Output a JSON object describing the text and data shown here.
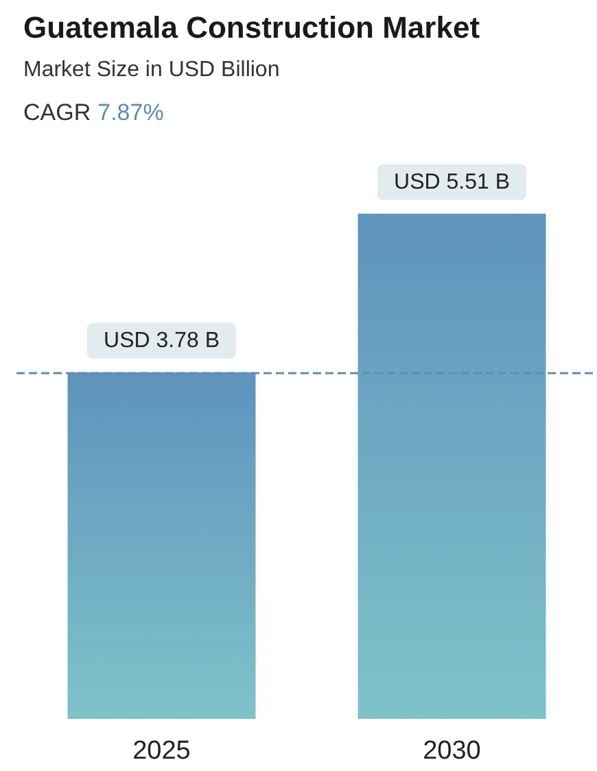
{
  "chart_data": {
    "type": "bar",
    "title": "Guatemala Construction Market",
    "subtitle": "Market Size in USD Billion",
    "annotations": [
      "CAGR 7.87%"
    ],
    "categories": [
      "2025",
      "2030"
    ],
    "series": [
      {
        "color": "#5e93bd",
        "values": [
          3.78,
          5.51
        ],
        "value_labels": [
          "USD 3.78 B",
          "USD 5.51 B"
        ]
      }
    ],
    "ref_lines": [
      {
        "axis": "y",
        "value": 3.78,
        "color": "#5b8db8",
        "line_style": "dashed"
      }
    ]
  }
}
